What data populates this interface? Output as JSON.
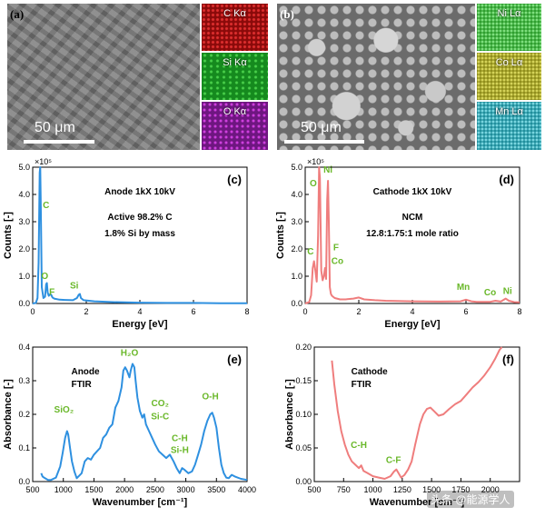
{
  "sem": {
    "a": {
      "letter": "(a)",
      "scale": "50 μm",
      "maps": [
        {
          "label": "C Kα",
          "color": "#c81414"
        },
        {
          "label": "Si Kα",
          "color": "#1fa21f"
        },
        {
          "label": "O Kα",
          "color": "#a020b0"
        }
      ]
    },
    "b": {
      "letter": "(b)",
      "scale": "50 μm",
      "maps": [
        {
          "label": "Ni Lα",
          "color": "#2aa83a"
        },
        {
          "label": "Co Lα",
          "color": "#a6a428"
        },
        {
          "label": "Mn Lα",
          "color": "#1fa0b0"
        }
      ]
    }
  },
  "chart_data": [
    {
      "id": "c",
      "type": "line",
      "panel_label": "(c)",
      "title": "Anode 1kX 10kV",
      "notes": [
        "Active 98.2% C",
        "1.8% Si by mass"
      ],
      "xlabel": "Energy [eV]",
      "ylabel": "Counts [-]",
      "multiplier": "×10⁵",
      "xlim": [
        0,
        8
      ],
      "ylim": [
        0,
        5.0
      ],
      "xticks": [
        0,
        2,
        4,
        6,
        8
      ],
      "yticks": [
        "0.0",
        "1.0",
        "2.0",
        "3.0",
        "4.0",
        "5.0"
      ],
      "color": "#2e90e0",
      "series": [
        {
          "name": "Anode EDS",
          "x": [
            0,
            0.12,
            0.18,
            0.22,
            0.26,
            0.28,
            0.3,
            0.34,
            0.4,
            0.46,
            0.5,
            0.53,
            0.56,
            0.6,
            0.66,
            0.7,
            0.74,
            0.8,
            1.0,
            1.2,
            1.5,
            1.65,
            1.72,
            1.76,
            1.8,
            1.9,
            2.1,
            2.3,
            2.5,
            3.0,
            4.0,
            5.0,
            6.0,
            7.0,
            8.0
          ],
          "y": [
            0,
            0.02,
            0.2,
            1.5,
            4.8,
            5.0,
            3.6,
            0.6,
            0.2,
            0.25,
            0.7,
            0.75,
            0.4,
            0.28,
            0.35,
            0.3,
            0.22,
            0.18,
            0.14,
            0.13,
            0.12,
            0.2,
            0.32,
            0.35,
            0.2,
            0.12,
            0.1,
            0.08,
            0.07,
            0.05,
            0.03,
            0.02,
            0.02,
            0.01,
            0.01
          ]
        }
      ],
      "peak_labels": [
        {
          "text": "C",
          "x": 0.5,
          "y": 3.5
        },
        {
          "text": "O",
          "x": 0.45,
          "y": 0.9
        },
        {
          "text": "F",
          "x": 0.72,
          "y": 0.32
        },
        {
          "text": "Si",
          "x": 1.55,
          "y": 0.55
        }
      ]
    },
    {
      "id": "d",
      "type": "line",
      "panel_label": "(d)",
      "title": "Cathode 1kX 10kV",
      "notes": [
        "NCM",
        "12.8:1.75:1 mole ratio"
      ],
      "xlabel": "Energy [eV]",
      "ylabel": "Counts [-]",
      "multiplier": "×10⁵",
      "xlim": [
        0,
        8
      ],
      "ylim": [
        0,
        5.0
      ],
      "xticks": [
        0,
        2,
        4,
        6,
        8
      ],
      "yticks": [
        "0.0",
        "1.0",
        "2.0",
        "3.0",
        "4.0",
        "5.0"
      ],
      "color": "#ef7d7d",
      "series": [
        {
          "name": "Cathode EDS",
          "x": [
            0,
            0.15,
            0.22,
            0.28,
            0.33,
            0.38,
            0.43,
            0.48,
            0.52,
            0.55,
            0.6,
            0.65,
            0.7,
            0.74,
            0.78,
            0.82,
            0.85,
            0.88,
            0.92,
            0.96,
            1.0,
            1.1,
            1.3,
            1.5,
            1.8,
            2.0,
            2.2,
            2.6,
            3.0,
            4.0,
            5.0,
            5.8,
            6.0,
            6.2,
            6.4,
            6.9,
            7.1,
            7.3,
            7.48,
            7.6,
            7.8,
            8.0
          ],
          "y": [
            0,
            0.05,
            0.3,
            1.3,
            1.55,
            1.2,
            0.8,
            2.5,
            5.0,
            4.6,
            1.2,
            0.85,
            1.0,
            1.3,
            0.9,
            3.8,
            4.5,
            3.0,
            0.6,
            0.35,
            0.28,
            0.2,
            0.15,
            0.15,
            0.18,
            0.22,
            0.15,
            0.12,
            0.1,
            0.08,
            0.07,
            0.08,
            0.14,
            0.08,
            0.06,
            0.06,
            0.1,
            0.07,
            0.18,
            0.1,
            0.05,
            0.04
          ]
        }
      ],
      "peak_labels": [
        {
          "text": "O",
          "x": 0.3,
          "y": 4.3
        },
        {
          "text": "Ni",
          "x": 0.85,
          "y": 4.8
        },
        {
          "text": "C",
          "x": 0.2,
          "y": 1.8
        },
        {
          "text": "F",
          "x": 1.15,
          "y": 1.95
        },
        {
          "text": "Co",
          "x": 1.2,
          "y": 1.45
        },
        {
          "text": "Mn",
          "x": 5.9,
          "y": 0.5
        },
        {
          "text": "Co",
          "x": 6.9,
          "y": 0.3
        },
        {
          "text": "Ni",
          "x": 7.55,
          "y": 0.35
        }
      ]
    },
    {
      "id": "e",
      "type": "line",
      "panel_label": "(e)",
      "title": "Anode",
      "notes": [
        "FTIR"
      ],
      "xlabel": "Wavenumber [cm⁻¹]",
      "ylabel": "Absorbance [-]",
      "xlim": [
        500,
        4000
      ],
      "ylim": [
        0,
        0.4
      ],
      "xticks": [
        500,
        1000,
        1500,
        2000,
        2500,
        3000,
        3500,
        4000
      ],
      "yticks": [
        "0.0",
        "0.1",
        "0.2",
        "0.3",
        "0.4"
      ],
      "color": "#2e90e0",
      "series": [
        {
          "name": "Anode FTIR",
          "x": [
            640,
            660,
            700,
            750,
            800,
            880,
            950,
            990,
            1030,
            1060,
            1080,
            1110,
            1140,
            1180,
            1220,
            1300,
            1350,
            1400,
            1450,
            1500,
            1550,
            1600,
            1650,
            1700,
            1750,
            1800,
            1850,
            1900,
            1950,
            1980,
            2010,
            2040,
            2080,
            2100,
            2130,
            2160,
            2180,
            2210,
            2250,
            2290,
            2320,
            2350,
            2400,
            2450,
            2500,
            2560,
            2620,
            2680,
            2740,
            2800,
            2850,
            2900,
            2940,
            2980,
            3040,
            3100,
            3150,
            3200,
            3250,
            3300,
            3350,
            3400,
            3430,
            3460,
            3500,
            3540,
            3580,
            3620,
            3660,
            3700,
            3750,
            3800,
            3900,
            4000
          ],
          "y": [
            0.025,
            0.015,
            0.01,
            0.005,
            0.005,
            0.012,
            0.045,
            0.085,
            0.13,
            0.15,
            0.14,
            0.1,
            0.06,
            0.03,
            0.01,
            0.025,
            0.06,
            0.07,
            0.065,
            0.08,
            0.09,
            0.1,
            0.13,
            0.14,
            0.16,
            0.17,
            0.22,
            0.24,
            0.28,
            0.33,
            0.34,
            0.33,
            0.31,
            0.33,
            0.35,
            0.34,
            0.3,
            0.25,
            0.21,
            0.19,
            0.2,
            0.17,
            0.15,
            0.13,
            0.11,
            0.09,
            0.08,
            0.07,
            0.08,
            0.06,
            0.04,
            0.025,
            0.04,
            0.035,
            0.025,
            0.03,
            0.05,
            0.08,
            0.11,
            0.15,
            0.18,
            0.2,
            0.205,
            0.19,
            0.16,
            0.1,
            0.05,
            0.025,
            0.012,
            0.01,
            0.02,
            0.015,
            0.008,
            0.005
          ]
        }
      ],
      "peak_labels": [
        {
          "text": "SiO₂",
          "x": 1010,
          "y": 0.205
        },
        {
          "text": "H₂O",
          "x": 2080,
          "y": 0.375
        },
        {
          "text": "CO₂",
          "x": 2580,
          "y": 0.225
        },
        {
          "text": "Si-C",
          "x": 2580,
          "y": 0.185
        },
        {
          "text": "C-H",
          "x": 2900,
          "y": 0.12
        },
        {
          "text": "Si-H",
          "x": 2900,
          "y": 0.085
        },
        {
          "text": "O-H",
          "x": 3400,
          "y": 0.245
        }
      ]
    },
    {
      "id": "f",
      "type": "line",
      "panel_label": "(f)",
      "title": "Cathode",
      "notes": [
        "FTIR"
      ],
      "xlabel": "Wavenumber [cm⁻¹]",
      "ylabel": "Absorbance [-]",
      "xlim": [
        500,
        2250
      ],
      "ylim": [
        0,
        0.2
      ],
      "xticks": [
        500,
        750,
        1000,
        1250,
        1500,
        1750,
        2000
      ],
      "yticks": [
        "0.00",
        "0.05",
        "0.10",
        "0.15",
        "0.20"
      ],
      "color": "#ef7d7d",
      "series": [
        {
          "name": "Cathode FTIR",
          "x": [
            650,
            670,
            700,
            730,
            760,
            790,
            820,
            850,
            880,
            900,
            920,
            950,
            1000,
            1050,
            1100,
            1150,
            1180,
            1200,
            1220,
            1240,
            1270,
            1300,
            1330,
            1360,
            1400,
            1430,
            1460,
            1490,
            1520,
            1560,
            1600,
            1650,
            1700,
            1750,
            1800,
            1850,
            1900,
            1950,
            2000,
            2040,
            2080,
            2100
          ],
          "y": [
            0.18,
            0.145,
            0.105,
            0.075,
            0.055,
            0.04,
            0.03,
            0.025,
            0.02,
            0.024,
            0.016,
            0.013,
            0.008,
            0.006,
            0.004,
            0.008,
            0.015,
            0.018,
            0.012,
            0.006,
            0.01,
            0.018,
            0.03,
            0.055,
            0.085,
            0.1,
            0.108,
            0.11,
            0.105,
            0.098,
            0.1,
            0.108,
            0.115,
            0.12,
            0.13,
            0.14,
            0.148,
            0.158,
            0.17,
            0.182,
            0.196,
            0.2
          ]
        }
      ],
      "peak_labels": [
        {
          "text": "C-H",
          "x": 880,
          "y": 0.05
        },
        {
          "text": "C-F",
          "x": 1175,
          "y": 0.028
        }
      ]
    }
  ],
  "watermark": "头条 @能源学人"
}
